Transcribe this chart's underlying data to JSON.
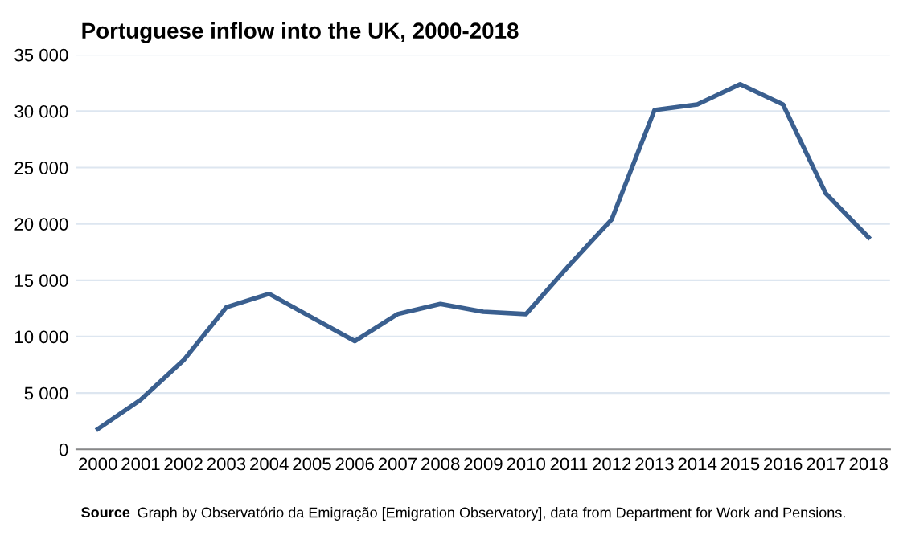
{
  "chart_data": {
    "type": "line",
    "title": "Portuguese inflow into the UK, 2000-2018",
    "categories": [
      "2000",
      "2001",
      "2002",
      "2003",
      "2004",
      "2005",
      "2006",
      "2007",
      "2008",
      "2009",
      "2010",
      "2011",
      "2012",
      "2013",
      "2014",
      "2015",
      "2016",
      "2017",
      "2018"
    ],
    "series": [
      {
        "color": "#3a5f8f",
        "values": [
          1800,
          4400,
          7900,
          12600,
          13800,
          11700,
          9600,
          12000,
          12900,
          12200,
          12000,
          16300,
          20400,
          30100,
          30600,
          32400,
          30600,
          22700,
          18800
        ]
      }
    ],
    "ylim": [
      0,
      35000
    ],
    "yticks": [
      0,
      {
        "value": 5000,
        "label": "5 000"
      },
      {
        "value": 10000,
        "label": "10 000"
      },
      {
        "value": 15000,
        "label": "15 000"
      },
      {
        "value": 20000,
        "label": "20 000"
      },
      {
        "value": 25000,
        "label": "25 000"
      },
      {
        "value": 30000,
        "label": "30 000"
      },
      {
        "value": 35000,
        "label": "35 000"
      }
    ],
    "grid": "y",
    "marker": "none",
    "line_style": "solid",
    "annotations": [
      "Source",
      "Graph by Observatório da Emigração [Emigration Observatory], data from Department for Work and Pensions."
    ]
  }
}
